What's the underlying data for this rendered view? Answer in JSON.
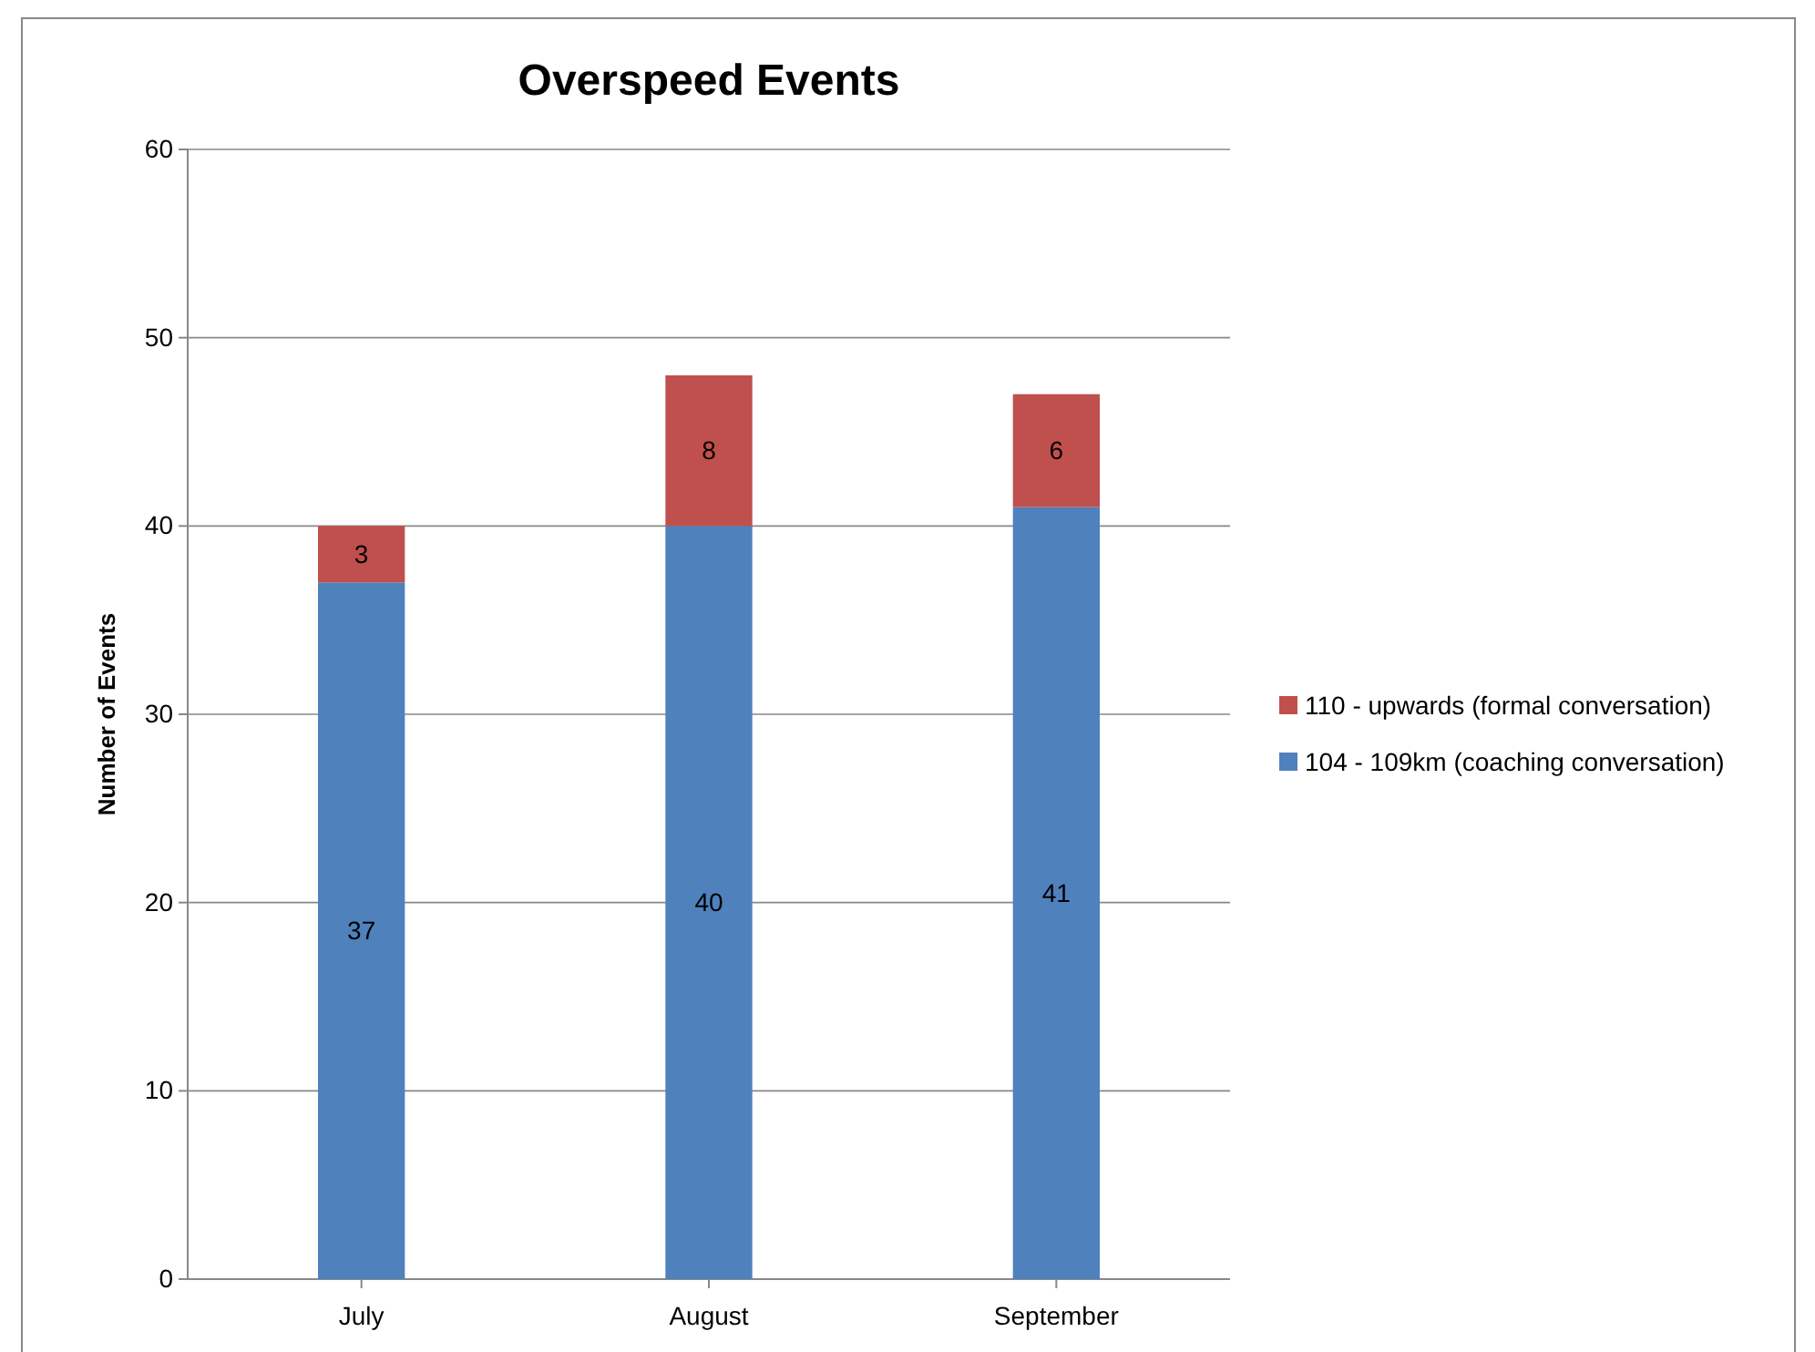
{
  "chart_data": {
    "type": "bar",
    "title": "Overspeed Events",
    "ylabel": "Number of Events",
    "categories": [
      "July",
      "August",
      "September"
    ],
    "series": [
      {
        "name": "104 - 109km (coaching conversation)",
        "color": "#4f81bd",
        "values": [
          37,
          40,
          41
        ]
      },
      {
        "name": "110 - upwards (formal conversation)",
        "color": "#c0504d",
        "values": [
          3,
          8,
          6
        ]
      }
    ],
    "stacked": true,
    "ylim": [
      0,
      60
    ],
    "yticks": [
      0,
      10,
      20,
      30,
      40,
      50,
      60
    ],
    "grid": "y",
    "legend": "right",
    "data_labels": true
  }
}
